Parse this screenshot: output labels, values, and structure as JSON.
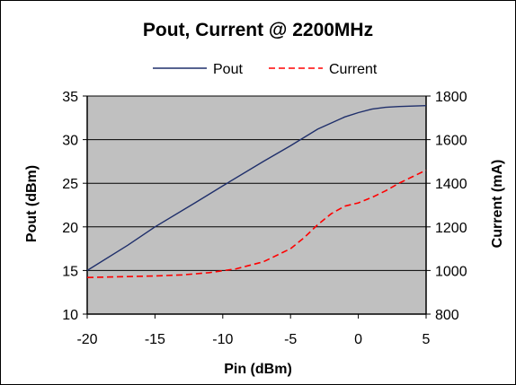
{
  "chart_data": {
    "type": "line",
    "title": "Pout, Current @ 2200MHz",
    "xlabel": "Pin (dBm)",
    "ylabel": "Pout  (dBm)",
    "y2label": "Current (mA)",
    "xlim": [
      -20,
      5
    ],
    "ylim": [
      10,
      35
    ],
    "y2lim": [
      800,
      1800
    ],
    "x_ticks": [
      "-20",
      "-15",
      "-10",
      "-5",
      "0",
      "5"
    ],
    "y_ticks": [
      "10",
      "15",
      "20",
      "25",
      "30",
      "35"
    ],
    "y2_ticks": [
      "800",
      "1000",
      "1200",
      "1400",
      "1600",
      "1800"
    ],
    "grid": "horizontal",
    "legend_position": "top",
    "series": [
      {
        "name": "Pout",
        "axis": "left",
        "color": "#1f2f6b",
        "style": "solid",
        "x": [
          -20,
          -17,
          -15,
          -12,
          -10,
          -7,
          -5,
          -3,
          -1,
          0,
          1,
          2,
          3,
          5
        ],
        "y": [
          15.0,
          17.9,
          20.0,
          22.8,
          24.7,
          27.5,
          29.3,
          31.2,
          32.6,
          33.1,
          33.5,
          33.7,
          33.8,
          33.9
        ]
      },
      {
        "name": "Current",
        "axis": "right",
        "color": "#ff0000",
        "style": "dashed",
        "x": [
          -20,
          -17,
          -15,
          -13,
          -11,
          -9,
          -7,
          -5,
          -4,
          -3,
          -2,
          -1,
          0,
          1,
          2,
          3,
          4,
          5
        ],
        "y": [
          968,
          972,
          975,
          980,
          990,
          1008,
          1040,
          1100,
          1150,
          1210,
          1260,
          1295,
          1310,
          1335,
          1365,
          1400,
          1430,
          1460
        ]
      }
    ]
  }
}
